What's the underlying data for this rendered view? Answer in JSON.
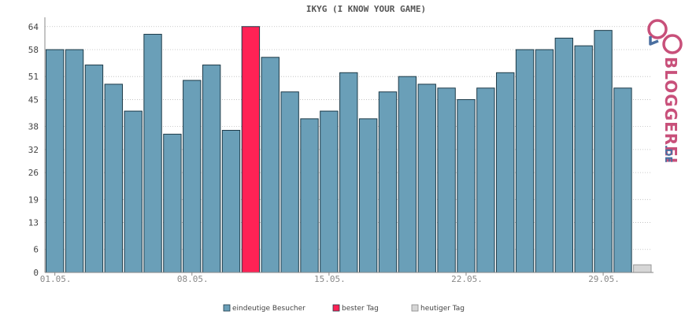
{
  "chart_data": {
    "type": "bar",
    "title": "IKYG (I KNOW YOUR GAME)",
    "xlabel": "",
    "ylabel": "",
    "ylim": [
      0,
      66
    ],
    "yticks": [
      0,
      6,
      13,
      19,
      26,
      32,
      38,
      45,
      51,
      58,
      64
    ],
    "xtick_labels": [
      {
        "label": "01.05.",
        "index": 0
      },
      {
        "label": "08.05.",
        "index": 7
      },
      {
        "label": "15.05.",
        "index": 14
      },
      {
        "label": "22.05.",
        "index": 21
      },
      {
        "label": "29.05.",
        "index": 28
      }
    ],
    "categories": [
      "01.05.",
      "02.05.",
      "03.05.",
      "04.05.",
      "05.05.",
      "06.05.",
      "07.05.",
      "08.05.",
      "09.05.",
      "10.05.",
      "11.05.",
      "12.05.",
      "13.05.",
      "14.05.",
      "15.05.",
      "16.05.",
      "17.05.",
      "18.05.",
      "19.05.",
      "20.05.",
      "21.05.",
      "22.05.",
      "23.05.",
      "24.05.",
      "25.05.",
      "26.05.",
      "27.05.",
      "28.05.",
      "29.05.",
      "30.05.",
      "31.05."
    ],
    "series": [
      {
        "name": "eindeutige Besucher",
        "values": [
          58,
          58,
          54,
          49,
          42,
          62,
          36,
          50,
          54,
          37,
          64,
          56,
          47,
          40,
          42,
          52,
          40,
          47,
          51,
          49,
          48,
          45,
          48,
          52,
          58,
          58,
          61,
          59,
          63,
          48,
          2
        ]
      }
    ],
    "highlights": [
      {
        "index": 10,
        "legend": "bester Tag"
      },
      {
        "index": 30,
        "legend": "heutiger Tag"
      }
    ],
    "grid": true,
    "legend_placement": "bottom",
    "colors": {
      "visitors": "#6a9fb8",
      "best": "#ff2255",
      "today": "#d6d6d6",
      "bar_stroke": "#1d3a48",
      "grid": "#bbbbbb"
    }
  },
  "legend": {
    "items": [
      {
        "label": "eindeutige Besucher",
        "color": "#6a9fb8"
      },
      {
        "label": "bester Tag",
        "color": "#ff2255"
      },
      {
        "label": "heutiger Tag",
        "color": "#d6d6d6"
      }
    ]
  },
  "logo": {
    "wordmark": "BLOGGEREI",
    "tld": ".DE",
    "colors": {
      "pink": "#c8507a",
      "blue": "#4a6fa0"
    }
  }
}
